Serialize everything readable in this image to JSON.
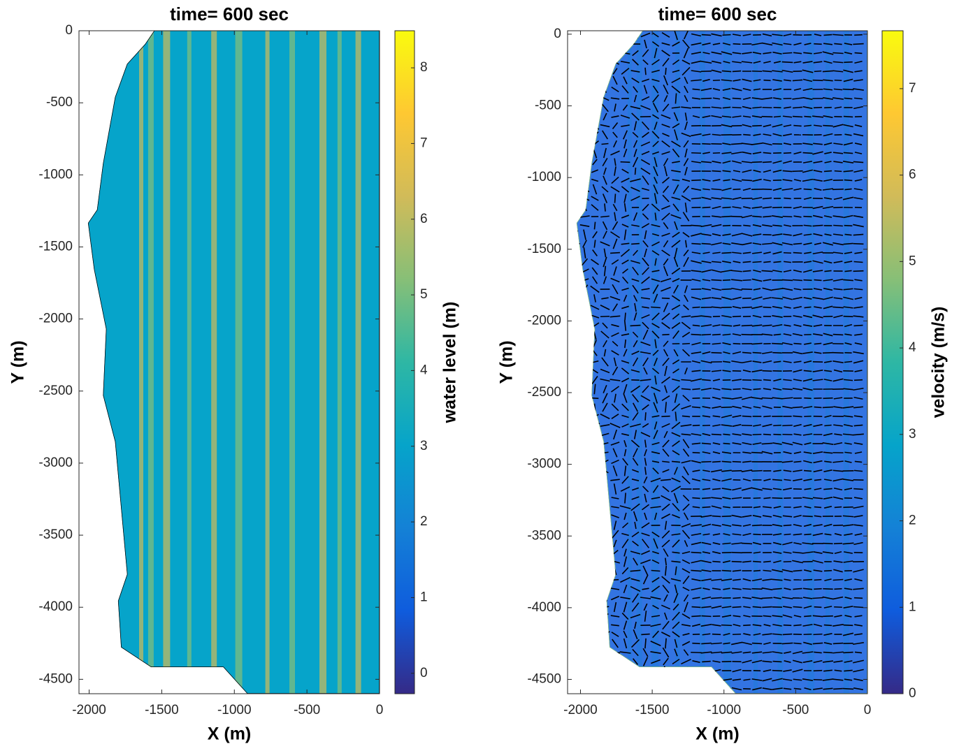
{
  "chart_data": [
    {
      "type": "heatmap",
      "title": "time= 600 sec",
      "xlabel": "X (m)",
      "ylabel": "Y (m)",
      "xlim": [
        -2070,
        0
      ],
      "ylim": [
        -4600,
        0
      ],
      "xticks": [
        -2000,
        -1500,
        -1000,
        -500,
        0
      ],
      "yticks": [
        0,
        -500,
        -1000,
        -1500,
        -2000,
        -2500,
        -3000,
        -3500,
        -4000,
        -4500
      ],
      "colorbar": {
        "label": "water level (m)",
        "colormap": "parula",
        "clim": [
          -0.27,
          8.49
        ],
        "ticks": [
          0,
          1,
          2,
          3,
          4,
          5,
          6,
          7,
          8
        ]
      },
      "quiver": false
    },
    {
      "type": "heatmap",
      "title": "time= 600 sec",
      "xlabel": "X (m)",
      "ylabel": "Y (m)",
      "xlim": [
        -2090,
        0
      ],
      "ylim": [
        -4600,
        24
      ],
      "xticks": [
        -2000,
        -1500,
        -1000,
        -500,
        0
      ],
      "yticks": [
        0,
        -500,
        -1000,
        -1500,
        -2000,
        -2500,
        -3000,
        -3500,
        -4000,
        -4500
      ],
      "colorbar": {
        "label": "velocity (m/s)",
        "colormap": "parula",
        "clim": [
          0,
          7.67
        ],
        "ticks": [
          0,
          1,
          2,
          3,
          4,
          5,
          6,
          7
        ]
      },
      "quiver": true
    }
  ]
}
